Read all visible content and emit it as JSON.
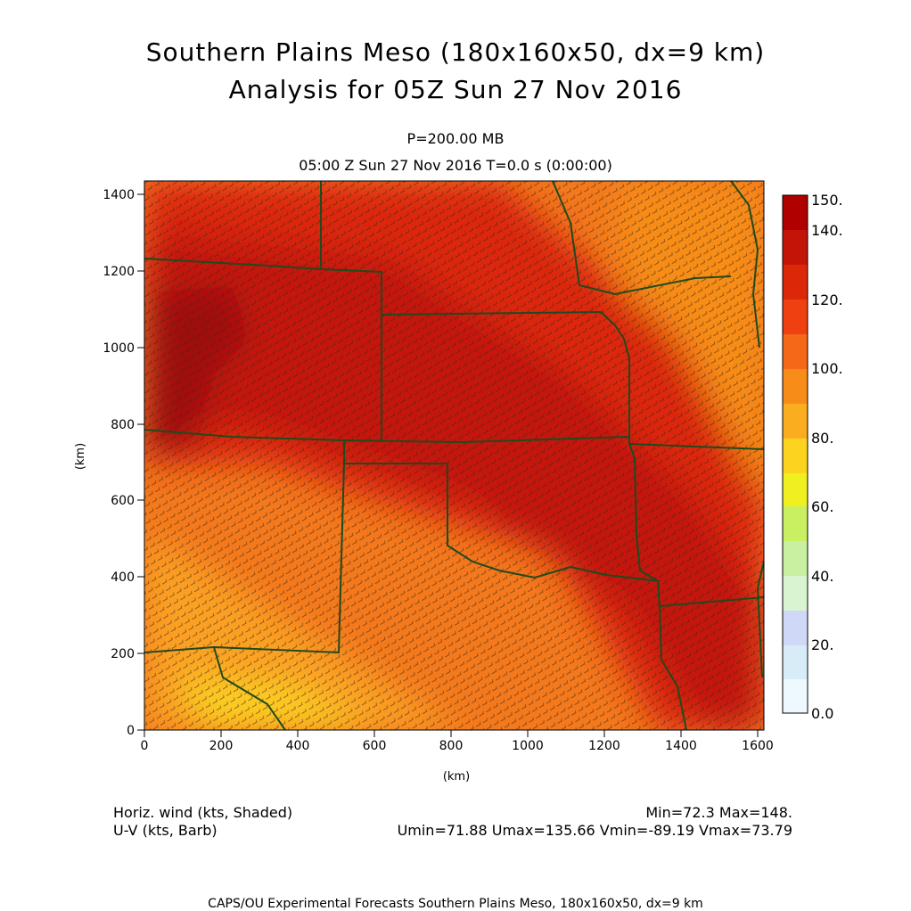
{
  "title": {
    "line1": "Southern Plains Meso (180x160x50, dx=9 km)",
    "line2": "Analysis for 05Z Sun 27 Nov 2016"
  },
  "subtitle": {
    "level": "P=200.00 MB",
    "time": "05:00 Z Sun 27 Nov 2016    T=0.0 s (0:00:00)"
  },
  "axes": {
    "x_unit": "(km)",
    "y_unit": "(km)",
    "x_ticks": [
      "0",
      "200",
      "400",
      "600",
      "800",
      "1000",
      "1200",
      "1400",
      "1600"
    ],
    "y_ticks": [
      "0",
      "200",
      "400",
      "600",
      "800",
      "1000",
      "1200",
      "1400"
    ],
    "x_range_km": [
      0,
      1620
    ],
    "y_range_km": [
      0,
      1440
    ]
  },
  "colorbar": {
    "labels": [
      "150.",
      "140.",
      "120.",
      "100.",
      "80.",
      "60.",
      "40.",
      "20.",
      "0.0"
    ],
    "colors": [
      "#b00000",
      "#c41408",
      "#dc2808",
      "#ee4010",
      "#f46818",
      "#f78c18",
      "#fbad20",
      "#fcd420",
      "#f0f020",
      "#c8f060",
      "#c8f0a0",
      "#d8f4d0",
      "#d0d8f8",
      "#d8ecf8",
      "#eef8ff"
    ]
  },
  "footer": {
    "left1": "Horiz. wind (kts, Shaded)",
    "left2": "U-V (kts, Barb)",
    "right1": "Min=72.3 Max=148.",
    "right2": "Umin=71.88 Umax=135.66 Vmin=-89.19 Vmax=73.79"
  },
  "credit": "CAPS/OU Experimental Forecasts  Southern Plains Meso, 180x160x50, dx=9 km"
}
